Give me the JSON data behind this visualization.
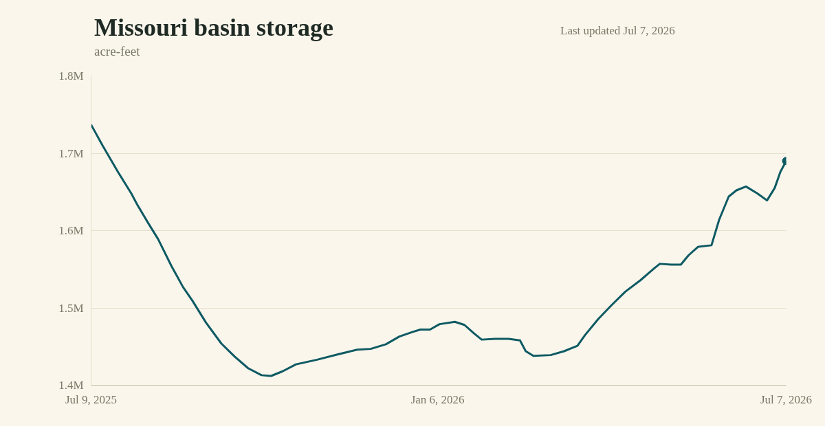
{
  "chart_data": {
    "type": "line",
    "title": "Missouri basin storage",
    "subtitle": "acre-feet",
    "annotations": [
      "Last updated Jul 7, 2026"
    ],
    "x": [
      "2025-07-09",
      "2025-07-15",
      "2025-07-23",
      "2025-07-30",
      "2025-08-02",
      "2025-08-08",
      "2025-08-13",
      "2025-08-20",
      "2025-08-26",
      "2025-08-31",
      "2025-09-07",
      "2025-09-15",
      "2025-09-22",
      "2025-09-29",
      "2025-10-06",
      "2025-10-11",
      "2025-10-17",
      "2025-10-24",
      "2025-11-04",
      "2025-11-15",
      "2025-11-25",
      "2025-12-02",
      "2025-12-10",
      "2025-12-17",
      "2025-12-24",
      "2025-12-28",
      "2026-01-02",
      "2026-01-07",
      "2026-01-15",
      "2026-01-20",
      "2026-01-25",
      "2026-01-29",
      "2026-02-05",
      "2026-02-12",
      "2026-02-18",
      "2026-02-21",
      "2026-02-25",
      "2026-03-06",
      "2026-03-13",
      "2026-03-20",
      "2026-03-24",
      "2026-03-31",
      "2026-04-07",
      "2026-04-14",
      "2026-04-22",
      "2026-04-29",
      "2026-05-02",
      "2026-05-08",
      "2026-05-13",
      "2026-05-17",
      "2026-05-22",
      "2026-05-29",
      "2026-06-02",
      "2026-06-07",
      "2026-06-11",
      "2026-06-16",
      "2026-06-22",
      "2026-06-27",
      "2026-07-01",
      "2026-07-04",
      "2026-07-07"
    ],
    "series": [
      {
        "color": "#0e5a63",
        "values": [
          1.737,
          1.71,
          1.676,
          1.648,
          1.634,
          1.609,
          1.589,
          1.554,
          1.527,
          1.509,
          1.481,
          1.454,
          1.437,
          1.422,
          1.413,
          1.412,
          1.418,
          1.427,
          1.433,
          1.44,
          1.446,
          1.447,
          1.453,
          1.463,
          1.469,
          1.472,
          1.472,
          1.479,
          1.482,
          1.478,
          1.467,
          1.459,
          1.46,
          1.46,
          1.458,
          1.444,
          1.438,
          1.439,
          1.444,
          1.451,
          1.465,
          1.486,
          1.504,
          1.521,
          1.536,
          1.551,
          1.557,
          1.556,
          1.556,
          1.568,
          1.579,
          1.581,
          1.614,
          1.644,
          1.652,
          1.657,
          1.648,
          1.639,
          1.655,
          1.676,
          1.69
        ]
      },
      {
        "type": "scatter",
        "color": "#0e5a63",
        "x": [
          "2026-07-07"
        ],
        "values": [
          1.69
        ]
      }
    ],
    "xlim": [
      "2025-07-09",
      "2026-07-07"
    ],
    "xticks": [
      {
        "value": "2025-07-09",
        "label": "Jul 9, 2025"
      },
      {
        "value": "2026-01-06",
        "label": "Jan 6, 2026"
      },
      {
        "value": "2026-07-07",
        "label": "Jul 7, 2026"
      }
    ],
    "ylim": [
      1.4,
      1.8
    ],
    "yticks": [
      {
        "value": 1.4,
        "label": "1.4M"
      },
      {
        "value": 1.5,
        "label": "1.5M"
      },
      {
        "value": 1.6,
        "label": "1.6M"
      },
      {
        "value": 1.7,
        "label": "1.7M"
      },
      {
        "value": 1.8,
        "label": "1.8M"
      }
    ],
    "grid": "y"
  }
}
